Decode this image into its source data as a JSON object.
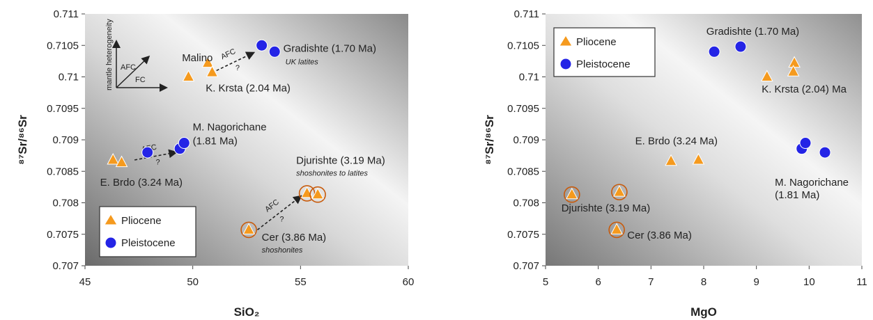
{
  "colors": {
    "pliocene": "#f59a1e",
    "pleistocene": "#2424e6",
    "outline": "#ffffff",
    "ring": "#c85a0a"
  },
  "chart_data": [
    {
      "type": "scatter",
      "xlabel": "SiO₂",
      "ylabel": "⁸⁷Sr/⁸⁶Sr",
      "xlim": [
        45,
        60
      ],
      "ylim": [
        0.707,
        0.711
      ],
      "xticks": [
        "45",
        "50",
        "55",
        "60"
      ],
      "yticks": [
        "0.707",
        "0.7075",
        "0.708",
        "0.7085",
        "0.709",
        "0.7095",
        "0.71",
        "0.7105",
        "0.711"
      ],
      "legend": {
        "position": "bottom-left",
        "entries": [
          "Pliocene",
          "Pleistocene"
        ]
      },
      "series": [
        {
          "name": "Pliocene",
          "marker": "triangle",
          "points": [
            {
              "x": 49.8,
              "y": 0.71,
              "ringed": false
            },
            {
              "x": 50.7,
              "y": 0.71022,
              "ringed": false
            },
            {
              "x": 50.9,
              "y": 0.71007,
              "ringed": false
            },
            {
              "x": 46.3,
              "y": 0.70868,
              "ringed": false
            },
            {
              "x": 46.7,
              "y": 0.70864,
              "ringed": false
            },
            {
              "x": 52.6,
              "y": 0.70757,
              "ringed": true
            },
            {
              "x": 55.3,
              "y": 0.70815,
              "ringed": true
            },
            {
              "x": 55.8,
              "y": 0.70813,
              "ringed": true
            }
          ]
        },
        {
          "name": "Pleistocene",
          "marker": "circle",
          "points": [
            {
              "x": 53.2,
              "y": 0.7105,
              "ringed": false
            },
            {
              "x": 53.8,
              "y": 0.7104,
              "ringed": false
            },
            {
              "x": 47.9,
              "y": 0.7088,
              "ringed": false
            },
            {
              "x": 49.4,
              "y": 0.70886,
              "ringed": false
            },
            {
              "x": 49.6,
              "y": 0.70895,
              "ringed": false
            }
          ]
        }
      ],
      "annotations": [
        {
          "text": "Malino",
          "x": 49.5,
          "y": 0.71025
        },
        {
          "text": "Gradishte (1.70 Ma)",
          "x": 54.2,
          "y": 0.7104
        },
        {
          "text": "UK latites",
          "x": 54.3,
          "y": 0.7102,
          "italic": true
        },
        {
          "text": "K. Krsta (2.04 Ma)",
          "x": 50.6,
          "y": 0.70977
        },
        {
          "text": "M. Nagorichane",
          "x": 50.0,
          "y": 0.70915
        },
        {
          "text": "(1.81 Ma)",
          "x": 50.0,
          "y": 0.70893
        },
        {
          "text": "E. Brdo (3.24 Ma)",
          "x": 45.7,
          "y": 0.70827
        },
        {
          "text": "Djurishte (3.19 Ma)",
          "x": 54.8,
          "y": 0.70862
        },
        {
          "text": "shoshonites to latites",
          "x": 54.8,
          "y": 0.70843,
          "italic": true
        },
        {
          "text": "Cer (3.86 Ma)",
          "x": 53.2,
          "y": 0.7074
        },
        {
          "text": "shoshonites",
          "x": 53.2,
          "y": 0.70721,
          "italic": true
        }
      ],
      "arrows": [
        {
          "from": [
            51.1,
            0.7101
          ],
          "to": [
            52.8,
            0.71038
          ],
          "label": "AFC",
          "label2": "?"
        },
        {
          "from": [
            47.3,
            0.70868
          ],
          "to": [
            49.2,
            0.7088
          ],
          "label": "AFC",
          "label2": "?"
        },
        {
          "from": [
            53.0,
            0.70757
          ],
          "to": [
            55.0,
            0.7081
          ],
          "label": "AFC",
          "label2": "?"
        }
      ],
      "inset": {
        "vertical": "mantle heterogeneity",
        "diagonal": "AFC",
        "horizontal": "FC"
      }
    },
    {
      "type": "scatter",
      "xlabel": "MgO",
      "ylabel": "⁸⁷Sr/⁸⁶Sr",
      "xlim": [
        5,
        11
      ],
      "ylim": [
        0.707,
        0.711
      ],
      "xticks": [
        "5",
        "6",
        "7",
        "8",
        "9",
        "10",
        "11"
      ],
      "yticks": [
        "0.707",
        "0.7075",
        "0.708",
        "0.7085",
        "0.709",
        "0.7095",
        "0.71",
        "0.7105",
        "0.711"
      ],
      "legend": {
        "position": "top-left",
        "entries": [
          "Pliocene",
          "Pleistocene"
        ]
      },
      "series": [
        {
          "name": "Pliocene",
          "marker": "triangle",
          "points": [
            {
              "x": 9.2,
              "y": 0.71,
              "ringed": false
            },
            {
              "x": 9.72,
              "y": 0.71022,
              "ringed": false
            },
            {
              "x": 9.7,
              "y": 0.71008,
              "ringed": false
            },
            {
              "x": 7.38,
              "y": 0.70866,
              "ringed": false
            },
            {
              "x": 7.9,
              "y": 0.70868,
              "ringed": false
            },
            {
              "x": 5.5,
              "y": 0.70813,
              "ringed": true
            },
            {
              "x": 6.4,
              "y": 0.70817,
              "ringed": true
            },
            {
              "x": 6.35,
              "y": 0.70757,
              "ringed": true
            }
          ]
        },
        {
          "name": "Pleistocene",
          "marker": "circle",
          "points": [
            {
              "x": 8.2,
              "y": 0.7104,
              "ringed": false
            },
            {
              "x": 8.7,
              "y": 0.71048,
              "ringed": false
            },
            {
              "x": 9.86,
              "y": 0.70886,
              "ringed": false
            },
            {
              "x": 9.93,
              "y": 0.70895,
              "ringed": false
            },
            {
              "x": 10.3,
              "y": 0.7088,
              "ringed": false
            }
          ]
        }
      ],
      "annotations": [
        {
          "text": "Gradishte (1.70 Ma)",
          "x": 8.05,
          "y": 0.71067
        },
        {
          "text": "K. Krsta (2.04) Ma",
          "x": 9.1,
          "y": 0.70975
        },
        {
          "text": "E. Brdo (3.24 Ma)",
          "x": 6.7,
          "y": 0.70893
        },
        {
          "text": "M. Nagorichane",
          "x": 9.35,
          "y": 0.70827
        },
        {
          "text": "(1.81 Ma)",
          "x": 9.35,
          "y": 0.70807
        },
        {
          "text": "Djurishte (3.19 Ma)",
          "x": 5.3,
          "y": 0.70786
        },
        {
          "text": "Cer (3.86 Ma)",
          "x": 6.55,
          "y": 0.70743
        }
      ]
    }
  ]
}
